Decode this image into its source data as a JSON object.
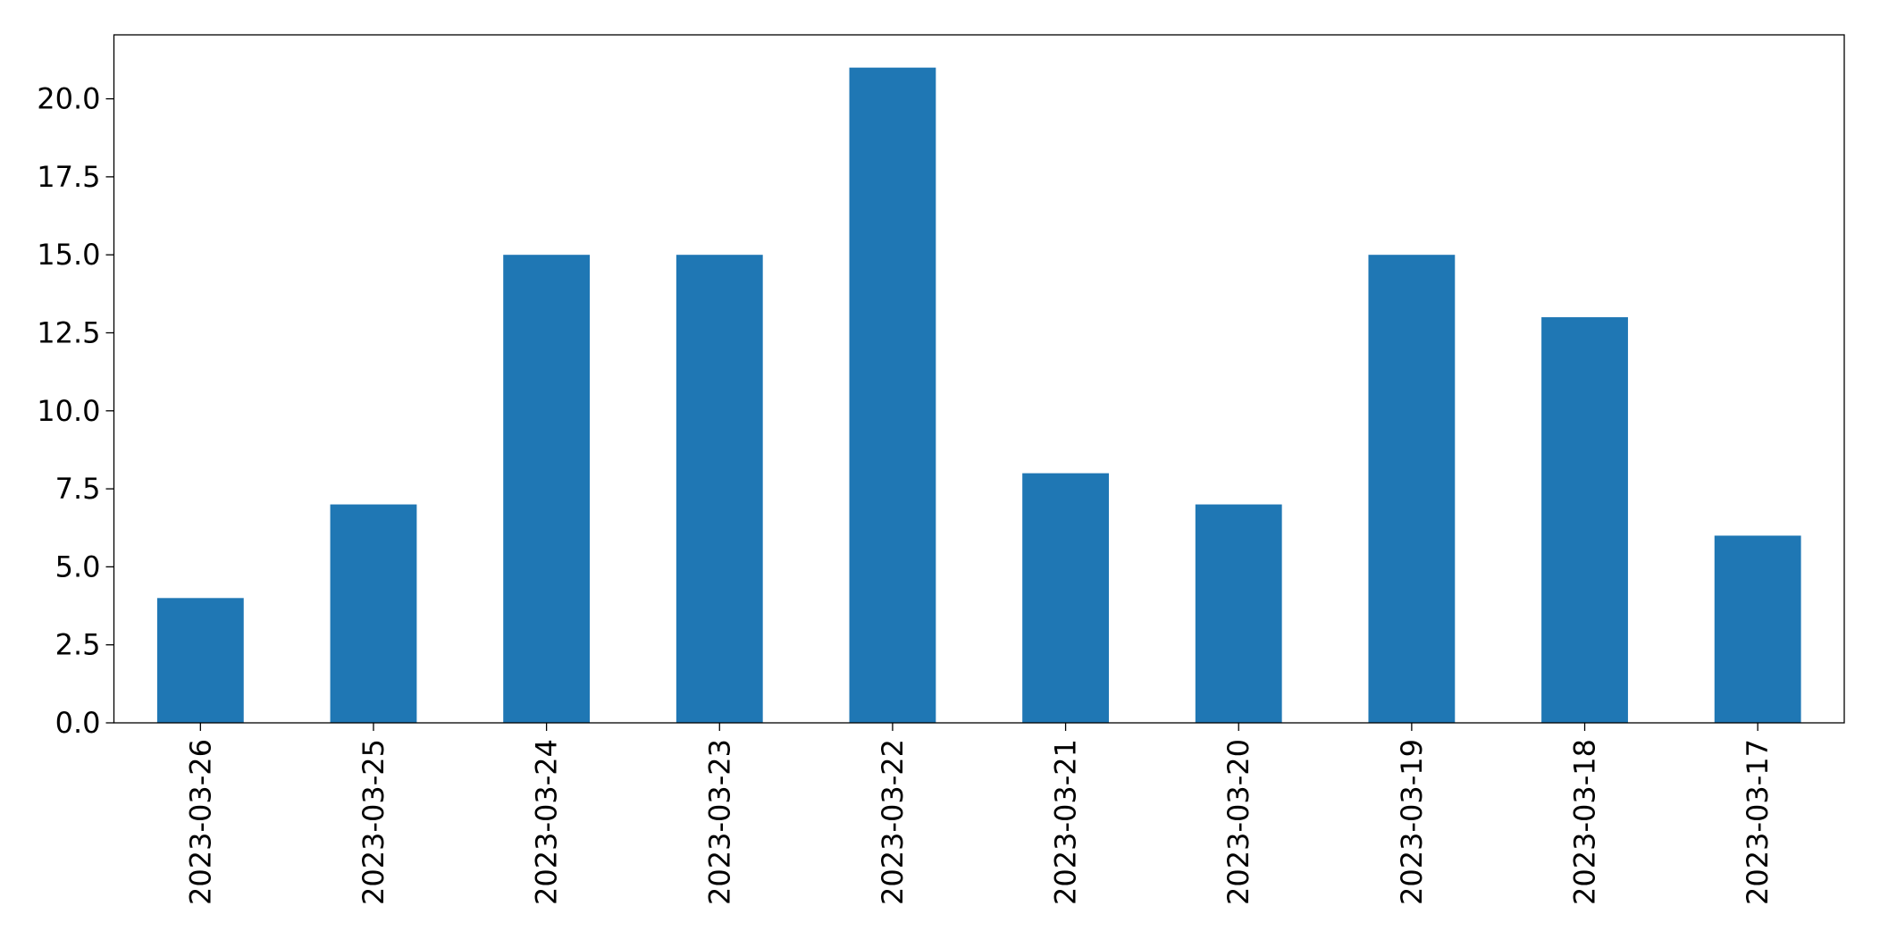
{
  "chart_data": {
    "type": "bar",
    "categories": [
      "2023-03-26",
      "2023-03-25",
      "2023-03-24",
      "2023-03-23",
      "2023-03-22",
      "2023-03-21",
      "2023-03-20",
      "2023-03-19",
      "2023-03-18",
      "2023-03-17"
    ],
    "values": [
      4,
      7,
      15,
      15,
      21,
      8,
      7,
      15,
      13,
      6
    ],
    "color": "#1f77b4",
    "ylim": [
      0,
      22.05
    ],
    "yticks": [
      {
        "value": 0,
        "label": "0.0"
      },
      {
        "value": 2.5,
        "label": "2.5"
      },
      {
        "value": 5,
        "label": "5.0"
      },
      {
        "value": 7.5,
        "label": "7.5"
      },
      {
        "value": 10,
        "label": "10.0"
      },
      {
        "value": 12.5,
        "label": "12.5"
      },
      {
        "value": 15,
        "label": "15.0"
      },
      {
        "value": 17.5,
        "label": "17.5"
      },
      {
        "value": 20,
        "label": "20.0"
      }
    ],
    "grid": false
  }
}
